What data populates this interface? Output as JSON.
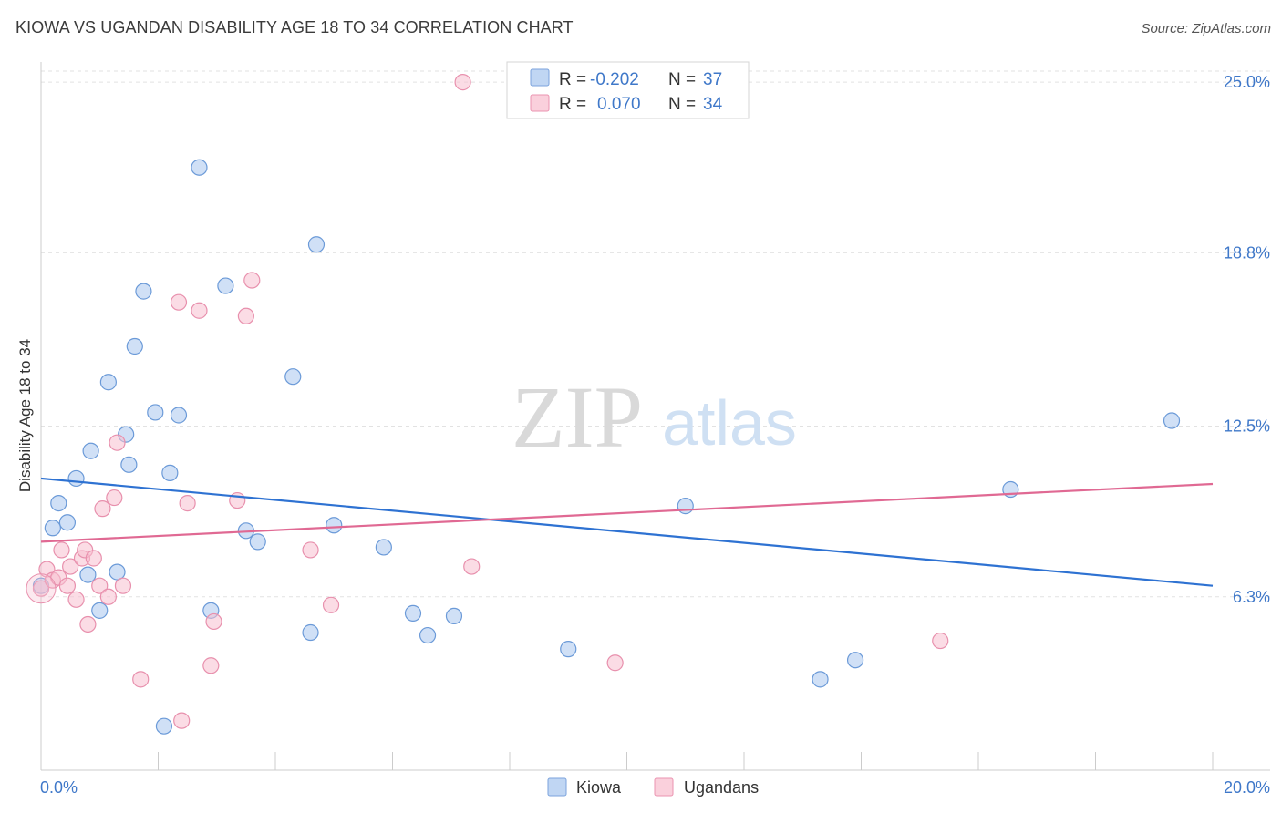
{
  "title": "KIOWA VS UGANDAN DISABILITY AGE 18 TO 34 CORRELATION CHART",
  "source": "Source: ZipAtlas.com",
  "watermark": {
    "zip": "ZIP",
    "atlas": "atlas"
  },
  "chart_data": {
    "type": "scatter",
    "ylabel": "Disability Age 18 to 34",
    "xlim": [
      0,
      20
    ],
    "ylim": [
      0,
      25.6
    ],
    "x_ticks": [
      {
        "value": 0,
        "label": "0.0%"
      },
      {
        "value": 20,
        "label": "20.0%"
      }
    ],
    "y_ticks": [
      {
        "value": 6.3,
        "label": "6.3%"
      },
      {
        "value": 12.5,
        "label": "12.5%"
      },
      {
        "value": 18.8,
        "label": "18.8%"
      },
      {
        "value": 25.0,
        "label": "25.0%"
      }
    ],
    "x_minor_ticks": [
      0,
      2,
      4,
      6,
      8,
      10,
      12,
      14,
      16,
      18,
      20
    ],
    "grid": true,
    "legend_position": "top-center",
    "series": [
      {
        "name": "Kiowa",
        "color": "#a9c6ee",
        "edge": "#6b9ad8",
        "trend_color": "#2e72d2",
        "R": "-0.202",
        "N": "37",
        "trend": [
          [
            0,
            10.6
          ],
          [
            20,
            6.7
          ]
        ],
        "points": [
          [
            0.0,
            6.7
          ],
          [
            0.2,
            8.8
          ],
          [
            0.3,
            9.7
          ],
          [
            0.45,
            9.0
          ],
          [
            0.6,
            10.6
          ],
          [
            0.8,
            7.1
          ],
          [
            0.85,
            11.6
          ],
          [
            1.0,
            5.8
          ],
          [
            1.15,
            14.1
          ],
          [
            1.3,
            7.2
          ],
          [
            1.45,
            12.2
          ],
          [
            1.5,
            11.1
          ],
          [
            1.6,
            15.4
          ],
          [
            1.75,
            17.4
          ],
          [
            1.95,
            13.0
          ],
          [
            2.1,
            1.6
          ],
          [
            2.2,
            10.8
          ],
          [
            2.35,
            12.9
          ],
          [
            2.7,
            21.9
          ],
          [
            2.9,
            5.8
          ],
          [
            3.15,
            17.6
          ],
          [
            3.5,
            8.7
          ],
          [
            3.7,
            8.3
          ],
          [
            4.3,
            14.3
          ],
          [
            4.6,
            5.0
          ],
          [
            4.7,
            19.1
          ],
          [
            5.0,
            8.9
          ],
          [
            5.85,
            8.1
          ],
          [
            6.35,
            5.7
          ],
          [
            6.6,
            4.9
          ],
          [
            7.05,
            5.6
          ],
          [
            9.0,
            4.4
          ],
          [
            11.0,
            9.6
          ],
          [
            13.3,
            3.3
          ],
          [
            13.9,
            4.0
          ],
          [
            16.55,
            10.2
          ],
          [
            19.3,
            12.7
          ]
        ]
      },
      {
        "name": "Ugandans",
        "color": "#f7bfd0",
        "edge": "#e890ad",
        "trend_color": "#e06993",
        "R": "0.070",
        "N": "34",
        "trend": [
          [
            0,
            8.3
          ],
          [
            20,
            10.4
          ]
        ],
        "points": [
          [
            0.0,
            6.6
          ],
          [
            0.1,
            7.3
          ],
          [
            0.2,
            6.9
          ],
          [
            0.3,
            7.0
          ],
          [
            0.35,
            8.0
          ],
          [
            0.45,
            6.7
          ],
          [
            0.5,
            7.4
          ],
          [
            0.6,
            6.2
          ],
          [
            0.7,
            7.7
          ],
          [
            0.75,
            8.0
          ],
          [
            0.8,
            5.3
          ],
          [
            0.9,
            7.7
          ],
          [
            1.0,
            6.7
          ],
          [
            1.05,
            9.5
          ],
          [
            1.15,
            6.3
          ],
          [
            1.25,
            9.9
          ],
          [
            1.3,
            11.9
          ],
          [
            1.4,
            6.7
          ],
          [
            1.7,
            3.3
          ],
          [
            2.35,
            17.0
          ],
          [
            2.4,
            1.8
          ],
          [
            2.5,
            9.7
          ],
          [
            2.7,
            16.7
          ],
          [
            2.9,
            3.8
          ],
          [
            2.95,
            5.4
          ],
          [
            3.35,
            9.8
          ],
          [
            3.5,
            16.5
          ],
          [
            3.6,
            17.8
          ],
          [
            4.6,
            8.0
          ],
          [
            4.95,
            6.0
          ],
          [
            7.2,
            25.0
          ],
          [
            7.35,
            7.4
          ],
          [
            9.8,
            3.9
          ],
          [
            15.35,
            4.7
          ]
        ]
      }
    ]
  }
}
